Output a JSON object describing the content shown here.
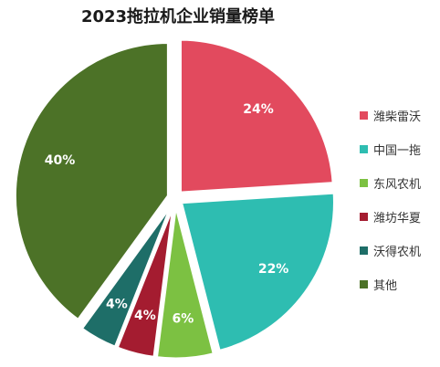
{
  "chart_data": {
    "type": "pie",
    "title": "2023拖拉机企业销量榜单",
    "slices": [
      {
        "label": "潍柴雷沃",
        "value": 24,
        "display": "24%",
        "color": "#e24a5e"
      },
      {
        "label": "中国一拖",
        "value": 22,
        "display": "22%",
        "color": "#2ebdb1"
      },
      {
        "label": "东风农机",
        "value": 6,
        "display": "6%",
        "color": "#7cc142"
      },
      {
        "label": "潍坊华夏",
        "value": 4,
        "display": "4%",
        "color": "#a41c30"
      },
      {
        "label": "沃得农机",
        "value": 4,
        "display": "4%",
        "color": "#1e6e68"
      },
      {
        "label": "其他",
        "value": 40,
        "display": "40%",
        "color": "#4c7227"
      }
    ],
    "legend_position": "right",
    "exploded": true
  }
}
